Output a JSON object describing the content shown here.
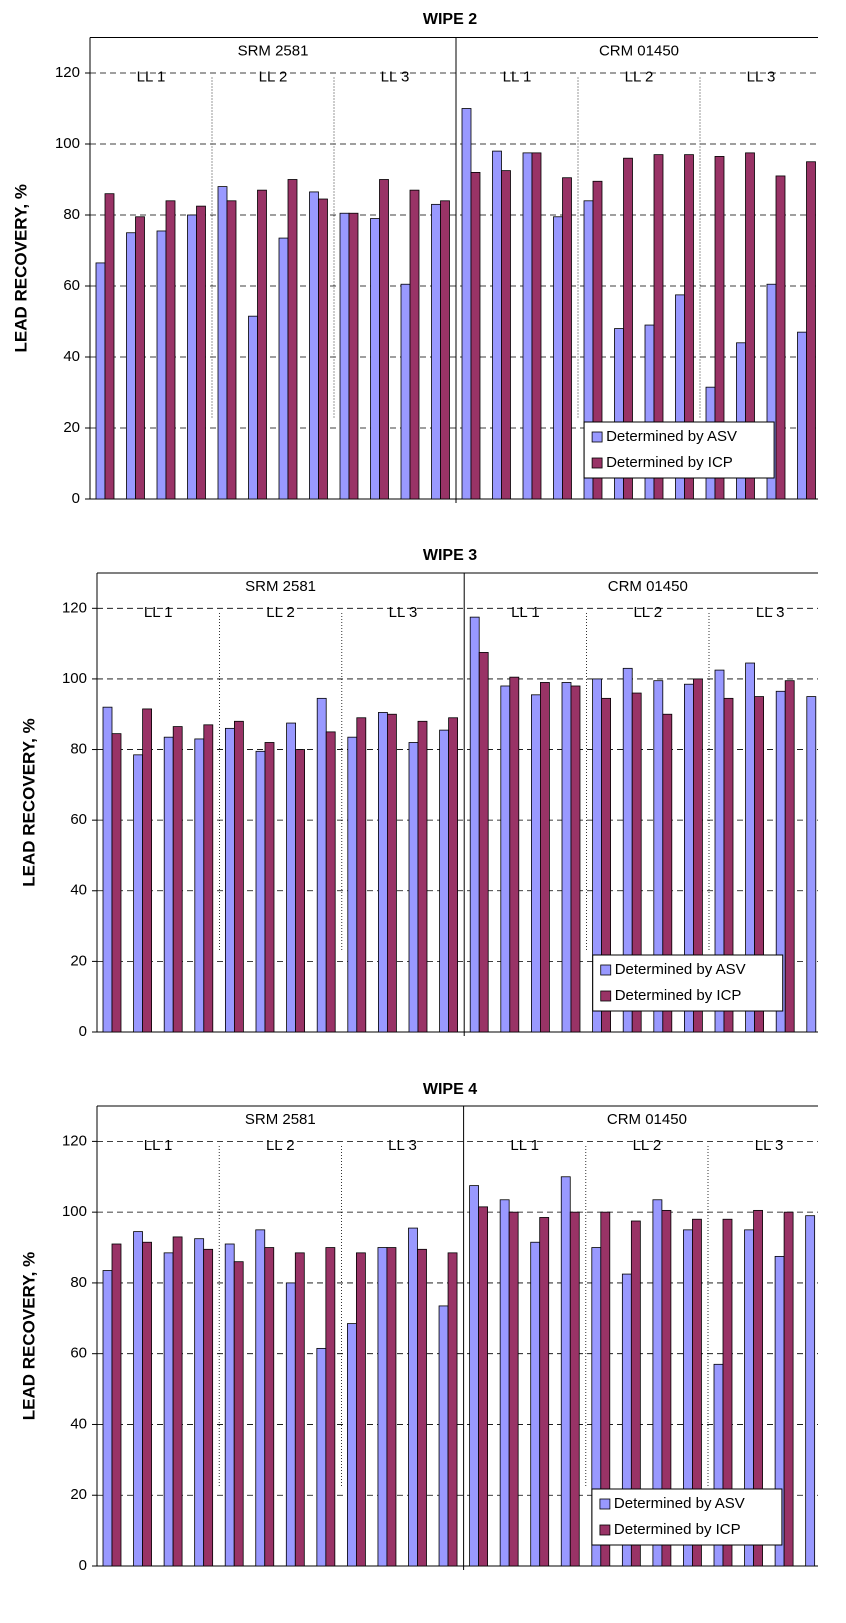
{
  "chart_data": [
    {
      "type": "bar",
      "title": "WIPE 2",
      "y_label": "LEAD RECOVERY, %",
      "categories": [
        null,
        null,
        null,
        null,
        null,
        null,
        null,
        null,
        null,
        null,
        null,
        null,
        null,
        null,
        null,
        null,
        null,
        null,
        null,
        null,
        null,
        null,
        null,
        null
      ],
      "series": [
        {
          "name": "Determined by ASV",
          "color": "#9999ff",
          "values": [
            66.5,
            75,
            75.5,
            80,
            88,
            51.5,
            73.5,
            86.5,
            80.5,
            79,
            60.5,
            83,
            110,
            98,
            97.5,
            79.5,
            84,
            48,
            49,
            57.5,
            31.5,
            44,
            60.5,
            47
          ]
        },
        {
          "name": "Determined by ICP",
          "color": "#993366",
          "values": [
            86,
            79.5,
            84,
            82.5,
            84,
            87,
            90,
            84.5,
            80.5,
            90,
            87,
            84,
            92,
            92.5,
            97.5,
            90.5,
            89.5,
            96,
            97,
            97,
            96.5,
            97.5,
            91,
            95
          ]
        }
      ],
      "groups": [
        {
          "label": "SRM 2581",
          "subgroups": [
            "LL 1",
            "LL 2",
            "LL 3"
          ]
        },
        {
          "label": "CRM 01450",
          "subgroups": [
            "LL 1",
            "LL 2",
            "LL 3"
          ]
        }
      ],
      "ylim": [
        0,
        130
      ],
      "yticks": [
        0,
        20,
        40,
        60,
        80,
        100,
        120
      ],
      "grid": true,
      "legend": "lower right"
    },
    {
      "type": "bar",
      "title": "WIPE 3",
      "y_label": "LEAD RECOVERY, %",
      "categories": [
        null,
        null,
        null,
        null,
        null,
        null,
        null,
        null,
        null,
        null,
        null,
        null,
        null,
        null,
        null,
        null,
        null,
        null,
        null,
        null,
        null,
        null,
        null,
        null
      ],
      "series": [
        {
          "name": "Determined by ASV",
          "color": "#9999ff",
          "values": [
            92,
            78.5,
            83.5,
            83,
            86,
            79.5,
            87.5,
            94.5,
            83.5,
            90.5,
            82,
            85.5,
            117.5,
            98,
            95.5,
            99,
            100,
            103,
            99.5,
            98.5,
            102.5,
            104.5,
            96.5,
            95
          ]
        },
        {
          "name": "Determined by ICP",
          "color": "#993366",
          "values": [
            84.5,
            91.5,
            86.5,
            87,
            88,
            82,
            80,
            85,
            89,
            90,
            88,
            89,
            107.5,
            100.5,
            99,
            98,
            94.5,
            96,
            90,
            100,
            94.5,
            95,
            99.5,
            null
          ]
        }
      ],
      "groups": [
        {
          "label": "SRM 2581",
          "subgroups": [
            "LL 1",
            "LL 2",
            "LL 3"
          ]
        },
        {
          "label": "CRM 01450",
          "subgroups": [
            "LL 1",
            "LL 2",
            "LL 3"
          ]
        }
      ],
      "ylim": [
        0,
        130
      ],
      "yticks": [
        0,
        20,
        40,
        60,
        80,
        100,
        120
      ],
      "grid": true,
      "legend": "lower right"
    },
    {
      "type": "bar",
      "title": "WIPE 4",
      "y_label": "LEAD RECOVERY, %",
      "categories": [
        null,
        null,
        null,
        null,
        null,
        null,
        null,
        null,
        null,
        null,
        null,
        null,
        null,
        null,
        null,
        null,
        null,
        null,
        null,
        null,
        null,
        null,
        null,
        null
      ],
      "series": [
        {
          "name": "Determined by ASV",
          "color": "#9999ff",
          "values": [
            83.5,
            94.5,
            88.5,
            92.5,
            91,
            95,
            80,
            61.5,
            68.5,
            90,
            95.5,
            73.5,
            107.5,
            103.5,
            91.5,
            110,
            90,
            82.5,
            103.5,
            95,
            57,
            95,
            87.5,
            99
          ]
        },
        {
          "name": "Determined by ICP",
          "color": "#993366",
          "values": [
            91,
            91.5,
            93,
            89.5,
            86,
            90,
            88.5,
            90,
            88.5,
            90,
            89.5,
            88.5,
            101.5,
            100,
            98.5,
            100,
            100,
            97.5,
            100.5,
            98,
            98,
            100.5,
            100,
            null
          ]
        }
      ],
      "groups": [
        {
          "label": "SRM 2581",
          "subgroups": [
            "LL 1",
            "LL 2",
            "LL 3"
          ]
        },
        {
          "label": "CRM 01450",
          "subgroups": [
            "LL 1",
            "LL 2",
            "LL 3"
          ]
        }
      ],
      "ylim": [
        0,
        130
      ],
      "yticks": [
        0,
        20,
        40,
        60,
        80,
        100,
        120
      ],
      "grid": true,
      "legend": "lower right"
    }
  ]
}
